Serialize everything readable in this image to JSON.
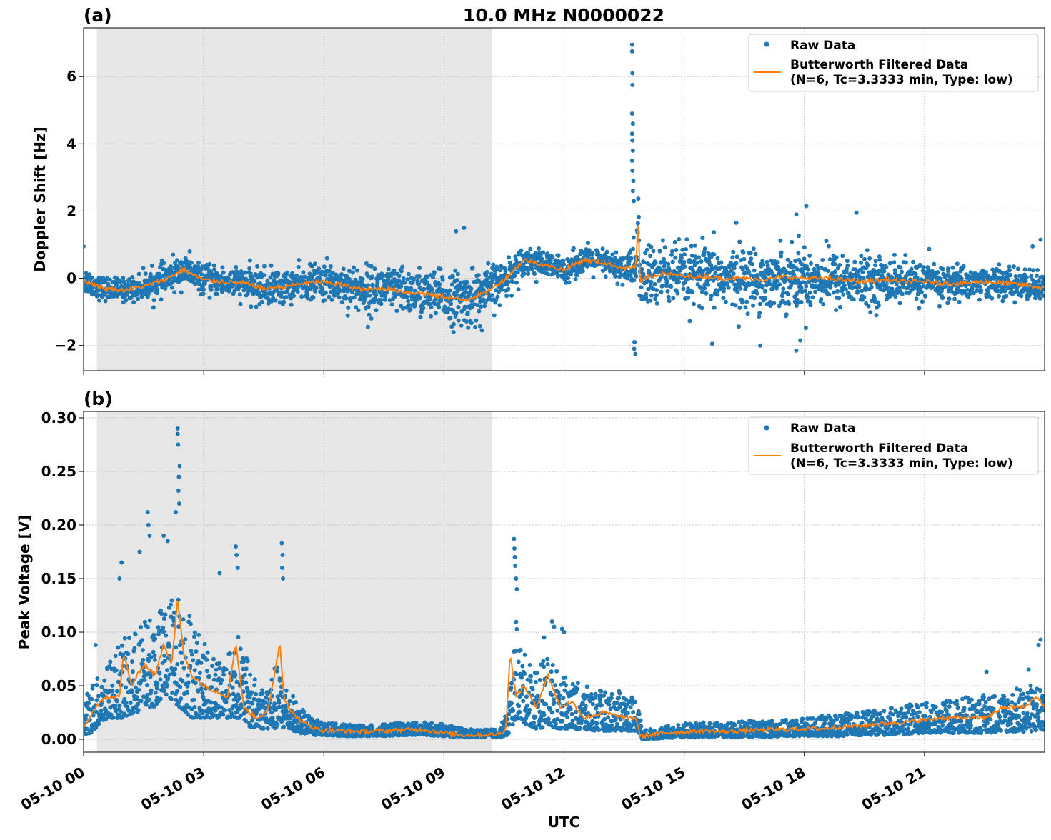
{
  "figure": {
    "title": "10.0 MHz N0000022",
    "xlabel": "UTC",
    "colors": {
      "raw": "#1f77b4",
      "filtered": "#ff7f0e",
      "night_shade": "#e6e6e6",
      "grid": "#b0b0b0"
    },
    "night_span_hours": [
      0.33,
      10.2
    ],
    "x_ticks": [
      {
        "hour": 0,
        "label": "05-10 00"
      },
      {
        "hour": 3,
        "label": "05-10 03"
      },
      {
        "hour": 6,
        "label": "05-10 06"
      },
      {
        "hour": 9,
        "label": "05-10 09"
      },
      {
        "hour": 12,
        "label": "05-10 12"
      },
      {
        "hour": 15,
        "label": "05-10 15"
      },
      {
        "hour": 18,
        "label": "05-10 18"
      },
      {
        "hour": 21,
        "label": "05-10 21"
      }
    ],
    "x_range_hours": [
      0,
      24
    ]
  },
  "chart_data": [
    {
      "panel": "(a)",
      "type": "scatter",
      "ylabel": "Doppler Shift [Hz]",
      "ylim": [
        -2.75,
        7.45
      ],
      "yticks": [
        {
          "value": -2,
          "label": "−2"
        },
        {
          "value": 0,
          "label": "0"
        },
        {
          "value": 2,
          "label": "2"
        },
        {
          "value": 4,
          "label": "4"
        },
        {
          "value": 6,
          "label": "6"
        }
      ],
      "grid": true,
      "legend": {
        "placement": "top-right",
        "raw_label": "Raw Data",
        "filtered_label_line1": "Butterworth Filtered Data",
        "filtered_label_line2": "(N=6, Tc=3.3333 min, Type: low)"
      },
      "filtered_series": {
        "name": "Butterworth Filtered Data",
        "x": [
          0,
          0.5,
          1,
          1.5,
          2,
          2.5,
          3,
          3.5,
          4,
          4.5,
          5,
          5.5,
          6,
          6.5,
          7,
          7.5,
          8,
          8.5,
          9,
          9.5,
          10,
          10.5,
          11,
          11.5,
          12,
          12.5,
          13,
          13.5,
          13.8,
          13.85,
          13.9,
          14,
          14.5,
          15,
          15.5,
          16,
          16.5,
          17,
          17.5,
          18,
          18.5,
          19,
          19.5,
          20,
          20.5,
          21,
          21.5,
          22,
          22.5,
          23,
          23.5,
          24
        ],
        "y": [
          -0.05,
          -0.3,
          -0.35,
          -0.25,
          -0.05,
          0.25,
          -0.05,
          -0.1,
          -0.15,
          -0.3,
          -0.25,
          -0.15,
          -0.1,
          -0.2,
          -0.35,
          -0.3,
          -0.4,
          -0.45,
          -0.55,
          -0.65,
          -0.45,
          -0.05,
          0.55,
          0.4,
          0.25,
          0.55,
          0.45,
          0.3,
          0.35,
          1.9,
          -0.2,
          0.0,
          0.15,
          0.05,
          0.05,
          0.0,
          0.0,
          -0.05,
          0.05,
          0.0,
          0.0,
          -0.05,
          -0.1,
          -0.05,
          -0.1,
          -0.1,
          -0.15,
          -0.15,
          -0.1,
          -0.15,
          -0.2,
          -0.3
        ]
      },
      "raw_envelope": {
        "x": [
          0,
          0.5,
          1,
          1.5,
          2,
          2.5,
          3,
          3.5,
          4,
          4.5,
          5,
          5.5,
          6,
          6.5,
          7,
          7.5,
          8,
          8.5,
          9,
          9.5,
          10,
          10.5,
          11,
          11.5,
          12,
          12.5,
          13,
          13.5,
          14,
          14.5,
          15,
          15.5,
          16,
          16.5,
          17,
          17.5,
          18,
          18.5,
          19,
          19.5,
          20,
          20.5,
          21,
          21.5,
          22,
          22.5,
          23,
          23.5,
          24
        ],
        "half_spread": [
          0.35,
          0.3,
          0.3,
          0.35,
          0.4,
          0.4,
          0.35,
          0.4,
          0.4,
          0.5,
          0.45,
          0.4,
          0.5,
          0.55,
          0.6,
          0.6,
          0.6,
          0.65,
          0.65,
          0.75,
          0.7,
          0.5,
          0.35,
          0.35,
          0.35,
          0.35,
          0.35,
          0.4,
          0.9,
          0.85,
          0.8,
          0.8,
          0.75,
          0.8,
          0.75,
          0.8,
          0.8,
          0.75,
          0.7,
          0.65,
          0.6,
          0.55,
          0.5,
          0.5,
          0.45,
          0.4,
          0.4,
          0.4,
          0.4
        ]
      },
      "raw_outliers": [
        {
          "x": 13.7,
          "y": 6.95
        },
        {
          "x": 13.7,
          "y": 6.75
        },
        {
          "x": 13.71,
          "y": 6.1
        },
        {
          "x": 13.71,
          "y": 5.75
        },
        {
          "x": 13.7,
          "y": 4.9
        },
        {
          "x": 13.72,
          "y": 4.6
        },
        {
          "x": 13.7,
          "y": 4.3
        },
        {
          "x": 13.71,
          "y": 4.1
        },
        {
          "x": 13.72,
          "y": 3.8
        },
        {
          "x": 13.7,
          "y": 3.5
        },
        {
          "x": 13.71,
          "y": 3.2
        },
        {
          "x": 13.73,
          "y": 2.9
        },
        {
          "x": 13.72,
          "y": 2.6
        },
        {
          "x": 13.74,
          "y": 2.3
        },
        {
          "x": 13.75,
          "y": -2.1
        },
        {
          "x": 13.78,
          "y": -2.25
        },
        {
          "x": 13.76,
          "y": -1.9
        },
        {
          "x": 2.65,
          "y": 0.8
        },
        {
          "x": 9.5,
          "y": 1.5
        },
        {
          "x": 9.3,
          "y": 1.4
        },
        {
          "x": 18.05,
          "y": 2.15
        },
        {
          "x": 19.3,
          "y": 1.95
        },
        {
          "x": 16.3,
          "y": 1.65
        },
        {
          "x": 17.8,
          "y": 1.9
        },
        {
          "x": 15.7,
          "y": -1.95
        },
        {
          "x": 16.9,
          "y": -2.0
        },
        {
          "x": 17.8,
          "y": -2.15
        },
        {
          "x": 17.9,
          "y": -1.85
        },
        {
          "x": 7.1,
          "y": -1.45
        },
        {
          "x": 9.95,
          "y": -1.55
        },
        {
          "x": 23.9,
          "y": 1.15
        },
        {
          "x": 23.7,
          "y": 0.95
        },
        {
          "x": 0.0,
          "y": 0.95
        }
      ]
    },
    {
      "panel": "(b)",
      "type": "scatter",
      "ylabel": "Peak Voltage [V]",
      "ylim": [
        -0.012,
        0.306
      ],
      "yticks": [
        {
          "value": 0.0,
          "label": "0.00"
        },
        {
          "value": 0.05,
          "label": "0.05"
        },
        {
          "value": 0.1,
          "label": "0.10"
        },
        {
          "value": 0.15,
          "label": "0.15"
        },
        {
          "value": 0.2,
          "label": "0.20"
        },
        {
          "value": 0.25,
          "label": "0.25"
        },
        {
          "value": 0.3,
          "label": "0.30"
        }
      ],
      "grid": true,
      "legend": {
        "placement": "top-right",
        "raw_label": "Raw Data",
        "filtered_label_line1": "Butterworth Filtered Data",
        "filtered_label_line2": "(N=6, Tc=3.3333 min, Type: low)"
      },
      "filtered_series": {
        "name": "Butterworth Filtered Data",
        "x": [
          0,
          0.3,
          0.6,
          0.9,
          1.0,
          1.2,
          1.5,
          1.8,
          2.0,
          2.2,
          2.35,
          2.5,
          2.7,
          3.0,
          3.3,
          3.6,
          3.8,
          4.0,
          4.3,
          4.6,
          4.9,
          5.0,
          5.2,
          5.5,
          5.8,
          6.0,
          6.5,
          7.0,
          7.5,
          8.0,
          8.5,
          9.0,
          9.5,
          10.0,
          10.4,
          10.55,
          10.65,
          10.8,
          11.0,
          11.3,
          11.6,
          11.9,
          12.2,
          12.5,
          13.0,
          13.5,
          13.8,
          13.9,
          14.2,
          14.5,
          15.0,
          15.5,
          16.0,
          16.5,
          17.0,
          17.5,
          18.0,
          18.5,
          19.0,
          19.5,
          20.0,
          20.5,
          21.0,
          21.5,
          22.0,
          22.5,
          23.0,
          23.5,
          23.8,
          24
        ],
        "y": [
          0.01,
          0.03,
          0.04,
          0.04,
          0.08,
          0.05,
          0.07,
          0.06,
          0.09,
          0.07,
          0.13,
          0.08,
          0.06,
          0.05,
          0.045,
          0.04,
          0.09,
          0.03,
          0.02,
          0.025,
          0.09,
          0.04,
          0.025,
          0.015,
          0.01,
          0.008,
          0.008,
          0.007,
          0.008,
          0.009,
          0.009,
          0.006,
          0.004,
          0.004,
          0.005,
          0.01,
          0.08,
          0.04,
          0.05,
          0.03,
          0.06,
          0.03,
          0.035,
          0.02,
          0.025,
          0.02,
          0.02,
          0.003,
          0.004,
          0.006,
          0.007,
          0.008,
          0.007,
          0.008,
          0.009,
          0.009,
          0.01,
          0.01,
          0.012,
          0.013,
          0.015,
          0.016,
          0.018,
          0.02,
          0.02,
          0.02,
          0.03,
          0.03,
          0.04,
          0.03
        ]
      },
      "raw_envelope": {
        "x": [
          0,
          0.3,
          0.6,
          0.9,
          1.2,
          1.5,
          1.8,
          2.1,
          2.4,
          2.7,
          3.0,
          3.3,
          3.6,
          3.9,
          4.2,
          4.5,
          4.8,
          5.1,
          5.4,
          5.7,
          6.0,
          6.5,
          7.0,
          7.5,
          8.0,
          8.5,
          9.0,
          9.5,
          10.0,
          10.4,
          10.6,
          10.8,
          11.0,
          11.3,
          11.6,
          11.9,
          12.2,
          12.5,
          13.0,
          13.5,
          13.85,
          13.95,
          14.5,
          15.0,
          15.5,
          16.0,
          16.5,
          17.0,
          17.5,
          18.0,
          18.5,
          19.0,
          19.5,
          20.0,
          20.5,
          21.0,
          21.5,
          22.0,
          22.5,
          23.0,
          23.5,
          24
        ],
        "low": [
          0.0,
          0.01,
          0.02,
          0.02,
          0.02,
          0.03,
          0.03,
          0.04,
          0.03,
          0.02,
          0.02,
          0.02,
          0.02,
          0.02,
          0.01,
          0.01,
          0.01,
          0.01,
          0.006,
          0.004,
          0.004,
          0.003,
          0.003,
          0.003,
          0.004,
          0.004,
          0.003,
          0.002,
          0.002,
          0.002,
          0.004,
          0.02,
          0.015,
          0.01,
          0.012,
          0.01,
          0.01,
          0.008,
          0.008,
          0.008,
          0.008,
          0.0,
          0.001,
          0.002,
          0.002,
          0.002,
          0.002,
          0.002,
          0.003,
          0.003,
          0.003,
          0.003,
          0.004,
          0.004,
          0.005,
          0.006,
          0.006,
          0.006,
          0.006,
          0.007,
          0.007,
          0.008
        ],
        "high": [
          0.04,
          0.06,
          0.07,
          0.09,
          0.1,
          0.11,
          0.12,
          0.13,
          0.14,
          0.12,
          0.09,
          0.08,
          0.08,
          0.1,
          0.06,
          0.05,
          0.07,
          0.05,
          0.03,
          0.02,
          0.016,
          0.014,
          0.013,
          0.014,
          0.016,
          0.016,
          0.014,
          0.01,
          0.009,
          0.01,
          0.03,
          0.11,
          0.08,
          0.07,
          0.08,
          0.06,
          0.055,
          0.05,
          0.045,
          0.045,
          0.04,
          0.008,
          0.012,
          0.015,
          0.016,
          0.015,
          0.017,
          0.018,
          0.018,
          0.02,
          0.022,
          0.024,
          0.026,
          0.028,
          0.032,
          0.034,
          0.036,
          0.04,
          0.042,
          0.045,
          0.05,
          0.055
        ]
      },
      "raw_outliers": [
        {
          "x": 2.35,
          "y": 0.29
        },
        {
          "x": 2.35,
          "y": 0.285
        },
        {
          "x": 2.36,
          "y": 0.275
        },
        {
          "x": 2.4,
          "y": 0.255
        },
        {
          "x": 2.38,
          "y": 0.245
        },
        {
          "x": 2.37,
          "y": 0.232
        },
        {
          "x": 2.39,
          "y": 0.22
        },
        {
          "x": 2.3,
          "y": 0.212
        },
        {
          "x": 1.6,
          "y": 0.212
        },
        {
          "x": 1.62,
          "y": 0.2
        },
        {
          "x": 1.65,
          "y": 0.19
        },
        {
          "x": 1.4,
          "y": 0.175
        },
        {
          "x": 2.0,
          "y": 0.19
        },
        {
          "x": 2.1,
          "y": 0.185
        },
        {
          "x": 0.95,
          "y": 0.165
        },
        {
          "x": 0.9,
          "y": 0.15
        },
        {
          "x": 3.8,
          "y": 0.18
        },
        {
          "x": 3.82,
          "y": 0.172
        },
        {
          "x": 3.85,
          "y": 0.16
        },
        {
          "x": 3.4,
          "y": 0.155
        },
        {
          "x": 4.95,
          "y": 0.183
        },
        {
          "x": 4.97,
          "y": 0.172
        },
        {
          "x": 4.96,
          "y": 0.16
        },
        {
          "x": 4.98,
          "y": 0.15
        },
        {
          "x": 10.75,
          "y": 0.187
        },
        {
          "x": 10.76,
          "y": 0.178
        },
        {
          "x": 10.77,
          "y": 0.17
        },
        {
          "x": 10.78,
          "y": 0.162
        },
        {
          "x": 10.8,
          "y": 0.15
        },
        {
          "x": 10.82,
          "y": 0.14
        },
        {
          "x": 11.7,
          "y": 0.11
        },
        {
          "x": 11.75,
          "y": 0.105
        },
        {
          "x": 11.95,
          "y": 0.103
        },
        {
          "x": 12.0,
          "y": 0.1
        },
        {
          "x": 11.5,
          "y": 0.095
        },
        {
          "x": 0.3,
          "y": 0.088
        },
        {
          "x": 22.55,
          "y": 0.063
        },
        {
          "x": 23.9,
          "y": 0.093
        },
        {
          "x": 23.85,
          "y": 0.088
        },
        {
          "x": 23.6,
          "y": 0.065
        }
      ]
    }
  ]
}
